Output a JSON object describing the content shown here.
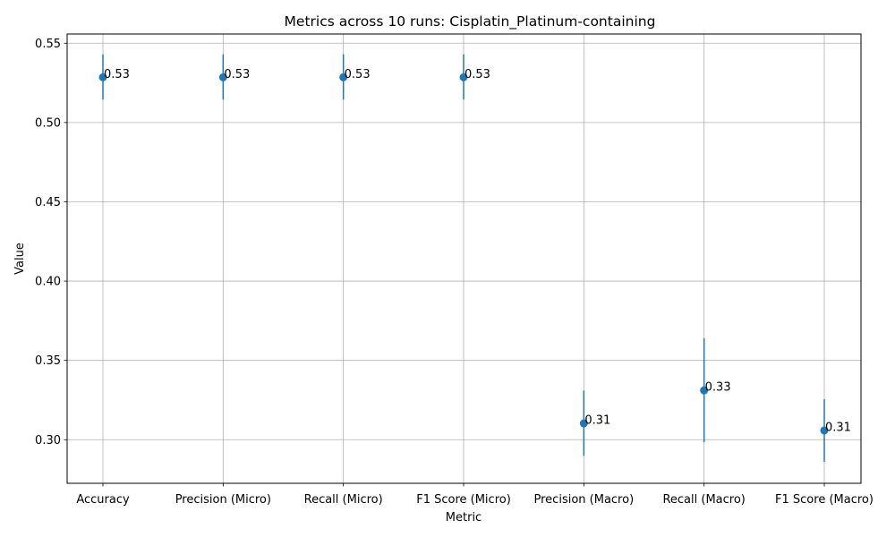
{
  "chart_data": {
    "type": "scatter",
    "title": "Metrics across 10 runs: Cisplatin_Platinum-containing",
    "xlabel": "Metric",
    "ylabel": "Value",
    "categories": [
      "Accuracy",
      "Precision (Micro)",
      "Recall (Micro)",
      "F1 Score (Micro)",
      "Precision (Macro)",
      "Recall (Macro)",
      "F1 Score (Macro)"
    ],
    "values": [
      0.5285,
      0.5285,
      0.5285,
      0.5285,
      0.3103,
      0.3311,
      0.3058
    ],
    "error_low": [
      0.5145,
      0.5145,
      0.5145,
      0.5145,
      0.2898,
      0.2985,
      0.286
    ],
    "error_high": [
      0.543,
      0.543,
      0.543,
      0.543,
      0.331,
      0.364,
      0.3255
    ],
    "labels": [
      "0.53",
      "0.53",
      "0.53",
      "0.53",
      "0.31",
      "0.33",
      "0.31"
    ],
    "ylim": [
      0.2725,
      0.5558
    ],
    "yticks": [
      0.3,
      0.35,
      0.4,
      0.45,
      0.5,
      0.55
    ],
    "ytick_labels": [
      "0.30",
      "0.35",
      "0.40",
      "0.45",
      "0.50",
      "0.55"
    ],
    "grid": true,
    "color": "#1f77b4"
  }
}
